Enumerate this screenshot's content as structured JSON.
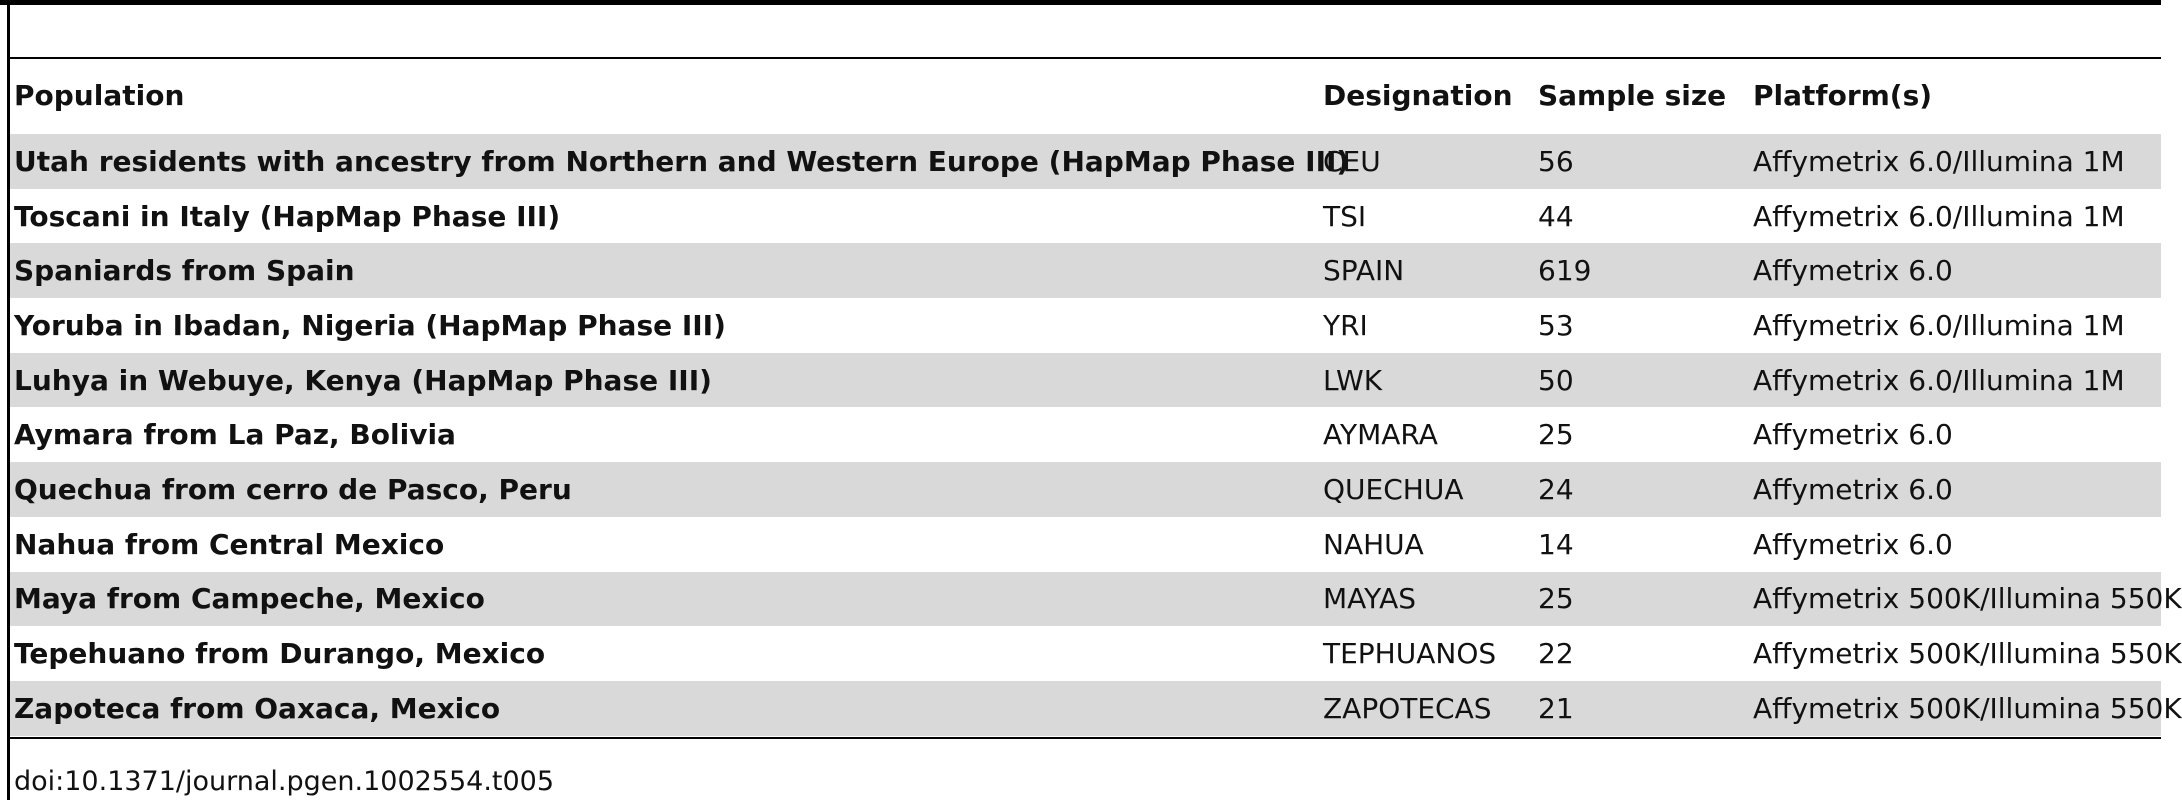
{
  "table": {
    "columns": [
      "Population",
      "Designation",
      "Sample size",
      "Platform(s)"
    ],
    "rows": [
      [
        "Utah residents with ancestry from Northern and Western Europe (HapMap Phase III)",
        "CEU",
        56,
        "Affymetrix 6.0/Illumina 1M"
      ],
      [
        "Toscani in Italy (HapMap Phase III)",
        "TSI",
        44,
        "Affymetrix 6.0/Illumina 1M"
      ],
      [
        "Spaniards from Spain",
        "SPAIN",
        619,
        "Affymetrix 6.0"
      ],
      [
        "Yoruba in Ibadan, Nigeria (HapMap Phase III)",
        "YRI",
        53,
        "Affymetrix 6.0/Illumina 1M"
      ],
      [
        "Luhya in Webuye, Kenya (HapMap Phase III)",
        "LWK",
        50,
        "Affymetrix 6.0/Illumina 1M"
      ],
      [
        "Aymara from La Paz, Bolivia",
        "AYMARA",
        25,
        "Affymetrix 6.0"
      ],
      [
        "Quechua from cerro de Pasco, Peru",
        "QUECHUA",
        24,
        "Affymetrix 6.0"
      ],
      [
        "Nahua from Central Mexico",
        "NAHUA",
        14,
        "Affymetrix 6.0"
      ],
      [
        "Maya from Campeche, Mexico",
        "MAYAS",
        25,
        "Affymetrix 500K/Illumina 550K"
      ],
      [
        "Tepehuano from Durango, Mexico",
        "TEPHUANOS",
        22,
        "Affymetrix 500K/Illumina 550K"
      ],
      [
        "Zapoteca from Oaxaca, Mexico",
        "ZAPOTECAS",
        21,
        "Affymetrix 500K/Illumina 550K"
      ]
    ]
  },
  "footer": {
    "doi": "doi:10.1371/journal.pgen.1002554.t005"
  }
}
